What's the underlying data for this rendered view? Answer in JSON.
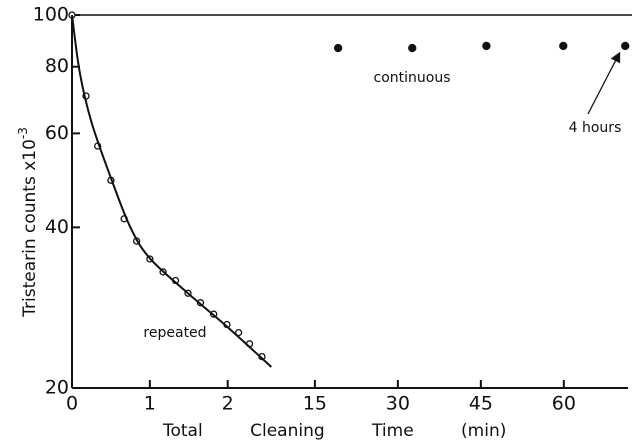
{
  "chart_data": {
    "type": "scatter",
    "y_label": "Tristearin counts x10",
    "y_label_exponent": "-3",
    "x_label": "Total Cleaning Time (min)",
    "yscale": "log",
    "ylim": [
      20,
      100
    ],
    "yticks": [
      20,
      40,
      60,
      80,
      100
    ],
    "x_segments": [
      {
        "xlim": [
          0,
          2.8
        ],
        "xticks": [
          0,
          1,
          2
        ]
      },
      {
        "xlim": [
          10.5,
          71.6
        ],
        "xticks": [
          15,
          30,
          45,
          60
        ]
      }
    ],
    "series": [
      {
        "name": "repeated",
        "segment": 0,
        "marker": "open",
        "color": "#111111",
        "x": [
          0,
          0.18,
          0.33,
          0.5,
          0.67,
          0.83,
          1.0,
          1.17,
          1.33,
          1.49,
          1.65,
          1.82,
          1.99,
          2.14,
          2.28,
          2.44
        ],
        "values": [
          100,
          70.5,
          56.8,
          49,
          41.5,
          37.7,
          34.9,
          33,
          31.8,
          30.1,
          28.9,
          27.5,
          26.3,
          25.4,
          24.2,
          22.9
        ]
      },
      {
        "segment": 0,
        "marker": "line",
        "color": "#111111",
        "x": [
          0,
          0.1,
          0.25,
          0.5,
          0.75,
          1,
          1.5,
          2,
          2.56
        ],
        "values": [
          100,
          78,
          63,
          49.5,
          40,
          35,
          30,
          26,
          21.9
        ]
      },
      {
        "name": "continuous",
        "segment": 1,
        "marker": "filled",
        "color": "#111111",
        "x": [
          19.2,
          32.6,
          46,
          59.9,
          71.1
        ],
        "values": [
          86.7,
          86.7,
          87.5,
          87.5,
          87.5
        ]
      }
    ],
    "annotations": [
      {
        "text": "4 hours"
      }
    ]
  }
}
